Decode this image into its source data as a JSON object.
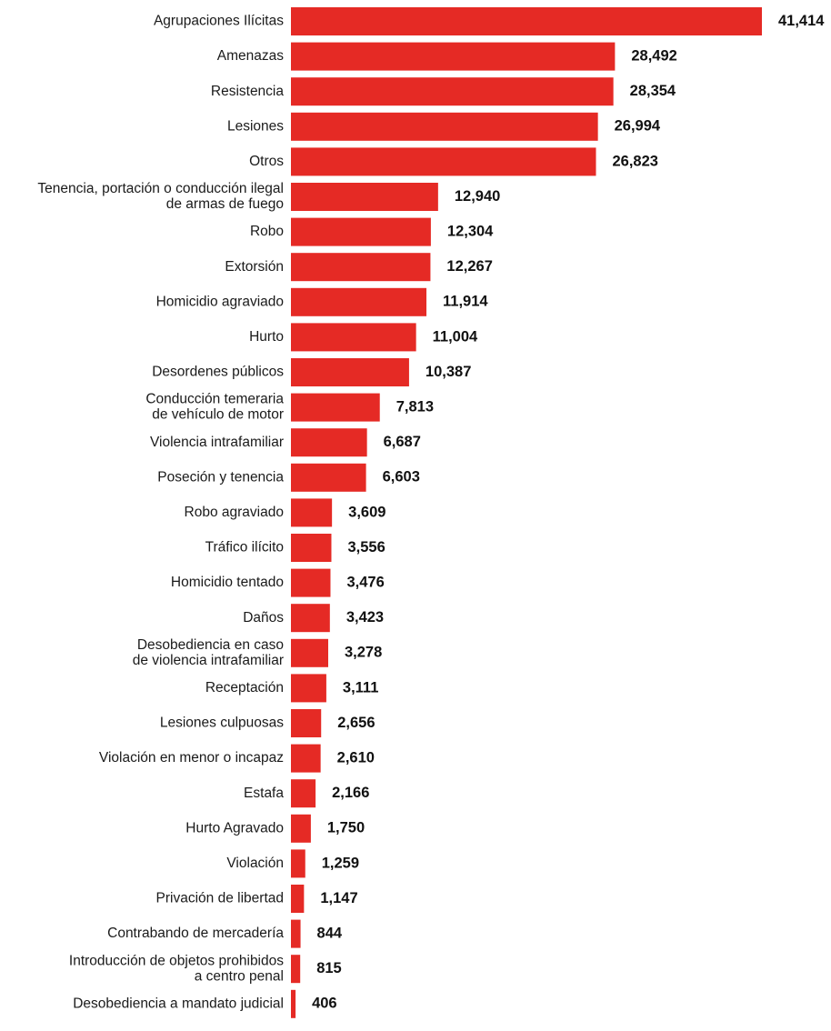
{
  "chart_data": {
    "type": "bar",
    "orientation": "horizontal",
    "title": "",
    "xlabel": "",
    "ylabel": "",
    "grid": false,
    "legend": "none",
    "bar_color": "#e52a25",
    "categories": [
      [
        "Agrupaciones Ilícitas"
      ],
      [
        "Amenazas"
      ],
      [
        "Resistencia"
      ],
      [
        "Lesiones"
      ],
      [
        "Otros"
      ],
      [
        "Tenencia, portación o conducción ilegal",
        "de armas de fuego"
      ],
      [
        "Robo"
      ],
      [
        "Extorsión"
      ],
      [
        "Homicidio agraviado"
      ],
      [
        "Hurto"
      ],
      [
        "Desordenes públicos"
      ],
      [
        "Conducción temeraria",
        "de vehículo de motor"
      ],
      [
        "Violencia intrafamiliar"
      ],
      [
        "Poseción y tenencia"
      ],
      [
        "Robo agraviado"
      ],
      [
        "Tráfico ilícito"
      ],
      [
        "Homicidio tentado"
      ],
      [
        "Daños"
      ],
      [
        "Desobediencia en caso",
        "de violencia intrafamiliar"
      ],
      [
        "Receptación"
      ],
      [
        "Lesiones culpuosas"
      ],
      [
        "Violación en menor o incapaz"
      ],
      [
        "Estafa"
      ],
      [
        "Hurto Agravado"
      ],
      [
        "Violación"
      ],
      [
        "Privación de libertad"
      ],
      [
        "Contrabando de mercadería"
      ],
      [
        "Introducción de objetos prohibidos",
        "a centro penal"
      ],
      [
        "Desobediencia a mandato judicial"
      ]
    ],
    "values": [
      41414,
      28492,
      28354,
      26994,
      26823,
      12940,
      12304,
      12267,
      11914,
      11004,
      10387,
      7813,
      6687,
      6603,
      3609,
      3556,
      3476,
      3423,
      3278,
      3111,
      2656,
      2610,
      2166,
      1750,
      1259,
      1147,
      844,
      815,
      406
    ],
    "value_labels": [
      "41,414",
      "28,492",
      "28,354",
      "26,994",
      "26,823",
      "12,940",
      "12,304",
      "12,267",
      "11,914",
      "11,004",
      "10,387",
      "7,813",
      "6,687",
      "6,603",
      "3,609",
      "3,556",
      "3,476",
      "3,423",
      "3,278",
      "3,111",
      "2,656",
      "2,610",
      "2,166",
      "1,750",
      "1,259",
      "1,147",
      "844",
      "815",
      "406"
    ]
  }
}
